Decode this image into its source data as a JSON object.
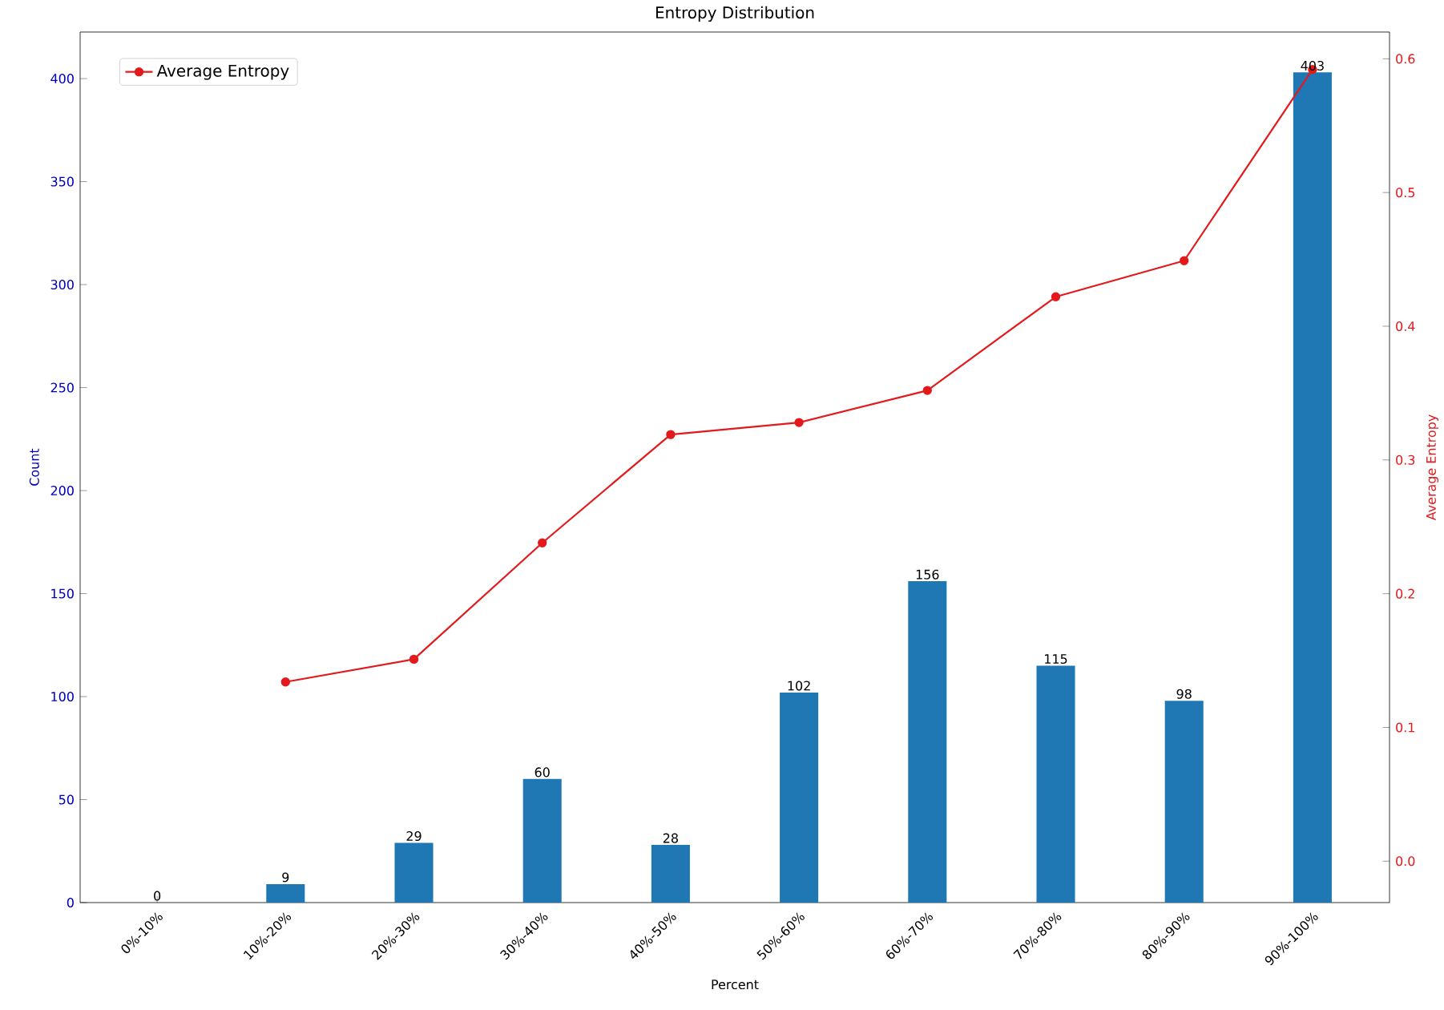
{
  "chart_data": {
    "type": "bar",
    "title": "Entropy Distribution",
    "xlabel": "Percent",
    "ylabel": "Count",
    "y2label": "Average Entropy",
    "categories": [
      "0%-10%",
      "10%-20%",
      "20%-30%",
      "30%-40%",
      "40%-50%",
      "50%-60%",
      "60%-70%",
      "70%-80%",
      "80%-90%",
      "90%-100%"
    ],
    "series": [
      {
        "color": "#1f77b4",
        "values": [
          0,
          9,
          29,
          60,
          28,
          102,
          156,
          115,
          98,
          403
        ],
        "value_labels": [
          "0",
          "9",
          "29",
          "60",
          "28",
          "102",
          "156",
          "115",
          "98",
          "403"
        ]
      },
      {
        "type": "line",
        "name": "Average Entropy",
        "axis": "y2",
        "color": "#e31a1c",
        "values": [
          null,
          0.134,
          0.151,
          0.238,
          0.319,
          0.328,
          0.352,
          0.422,
          0.449,
          0.592
        ]
      }
    ],
    "ylim": [
      0,
      422.6
    ],
    "yticks": [
      0,
      50,
      100,
      150,
      200,
      250,
      300,
      350,
      400
    ],
    "y2lim": [
      -0.031,
      0.62
    ],
    "y2ticks": [
      {
        "value": 0,
        "label": "0.0"
      },
      {
        "value": 0.1,
        "label": "0.1"
      },
      {
        "value": 0.2,
        "label": "0.2"
      },
      {
        "value": 0.3,
        "label": "0.3"
      },
      {
        "value": 0.4,
        "label": "0.4"
      },
      {
        "value": 0.5,
        "label": "0.5"
      },
      {
        "value": 0.6,
        "label": "0.6"
      }
    ],
    "marker": "circle",
    "legend": "top left",
    "grid": false
  }
}
